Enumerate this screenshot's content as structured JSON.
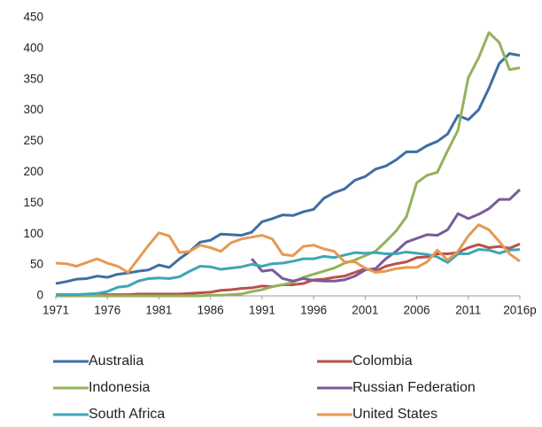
{
  "chart_data": {
    "type": "line",
    "x": [
      1971,
      1972,
      1973,
      1974,
      1975,
      1976,
      1977,
      1978,
      1979,
      1980,
      1981,
      1982,
      1983,
      1984,
      1985,
      1986,
      1987,
      1988,
      1989,
      1990,
      1991,
      1992,
      1993,
      1994,
      1995,
      1996,
      1997,
      1998,
      1999,
      2000,
      2001,
      2002,
      2003,
      2004,
      2005,
      2006,
      2007,
      2008,
      2009,
      2010,
      2011,
      2012,
      2013,
      2014,
      2015,
      2016
    ],
    "xlim": [
      1971,
      2016
    ],
    "xticks": [
      1971,
      1976,
      1981,
      1986,
      1991,
      1996,
      2001,
      2006,
      2011,
      {
        "value": 2016,
        "label": "2016p"
      }
    ],
    "ylim": [
      0,
      450
    ],
    "yticks": [
      0,
      50,
      100,
      150,
      200,
      250,
      300,
      350,
      400,
      450
    ],
    "grid": false,
    "legend": "bottom",
    "series": [
      {
        "name": "Australia",
        "color": "#3e6ea3",
        "values": [
          20,
          23,
          27,
          28,
          32,
          30,
          35,
          37,
          40,
          42,
          50,
          46,
          60,
          72,
          87,
          90,
          100,
          99,
          98,
          103,
          120,
          125,
          131,
          130,
          136,
          140,
          158,
          167,
          173,
          187,
          193,
          205,
          210,
          220,
          233,
          233,
          243,
          250,
          262,
          292,
          285,
          301,
          336,
          376,
          392,
          389
        ]
      },
      {
        "name": "Colombia",
        "color": "#b9504c",
        "values": [
          2,
          2,
          2,
          2,
          2,
          2,
          2,
          2,
          3,
          3,
          3,
          3,
          3,
          4,
          5,
          6,
          9,
          10,
          12,
          13,
          16,
          15,
          18,
          18,
          20,
          26,
          27,
          30,
          32,
          38,
          44,
          40,
          48,
          52,
          55,
          62,
          63,
          68,
          68,
          70,
          78,
          83,
          78,
          80,
          77,
          84
        ]
      },
      {
        "name": "Indonesia",
        "color": "#94b25b",
        "values": [
          0,
          0,
          0,
          0,
          0,
          0,
          0,
          0,
          0,
          0,
          0,
          0,
          0,
          0,
          0,
          1,
          1,
          2,
          3,
          7,
          10,
          15,
          18,
          22,
          30,
          35,
          40,
          45,
          53,
          58,
          65,
          72,
          88,
          105,
          128,
          183,
          195,
          200,
          235,
          268,
          353,
          385,
          426,
          410,
          366,
          369
        ]
      },
      {
        "name": "Russian Federation",
        "color": "#7a5b9b",
        "values": [
          null,
          null,
          null,
          null,
          null,
          null,
          null,
          null,
          null,
          null,
          null,
          null,
          null,
          null,
          null,
          null,
          null,
          null,
          null,
          60,
          40,
          42,
          28,
          24,
          28,
          25,
          24,
          24,
          26,
          32,
          42,
          44,
          60,
          72,
          87,
          93,
          99,
          98,
          107,
          133,
          125,
          132,
          141,
          156,
          156,
          172
        ]
      },
      {
        "name": "South Africa",
        "color": "#3fa6b6",
        "values": [
          2,
          2,
          2,
          3,
          4,
          7,
          14,
          16,
          24,
          28,
          29,
          28,
          31,
          40,
          48,
          47,
          43,
          45,
          47,
          51,
          48,
          52,
          53,
          56,
          60,
          60,
          64,
          62,
          66,
          70,
          69,
          70,
          68,
          68,
          71,
          69,
          67,
          63,
          54,
          68,
          68,
          75,
          74,
          69,
          74,
          75
        ]
      },
      {
        "name": "United States",
        "color": "#e59a50",
        "values": [
          53,
          52,
          48,
          54,
          60,
          53,
          48,
          38,
          60,
          82,
          102,
          97,
          70,
          72,
          82,
          78,
          72,
          86,
          92,
          95,
          98,
          92,
          67,
          65,
          80,
          82,
          76,
          72,
          55,
          55,
          45,
          38,
          40,
          44,
          46,
          46,
          55,
          74,
          58,
          72,
          97,
          115,
          107,
          88,
          68,
          56
        ]
      }
    ]
  }
}
